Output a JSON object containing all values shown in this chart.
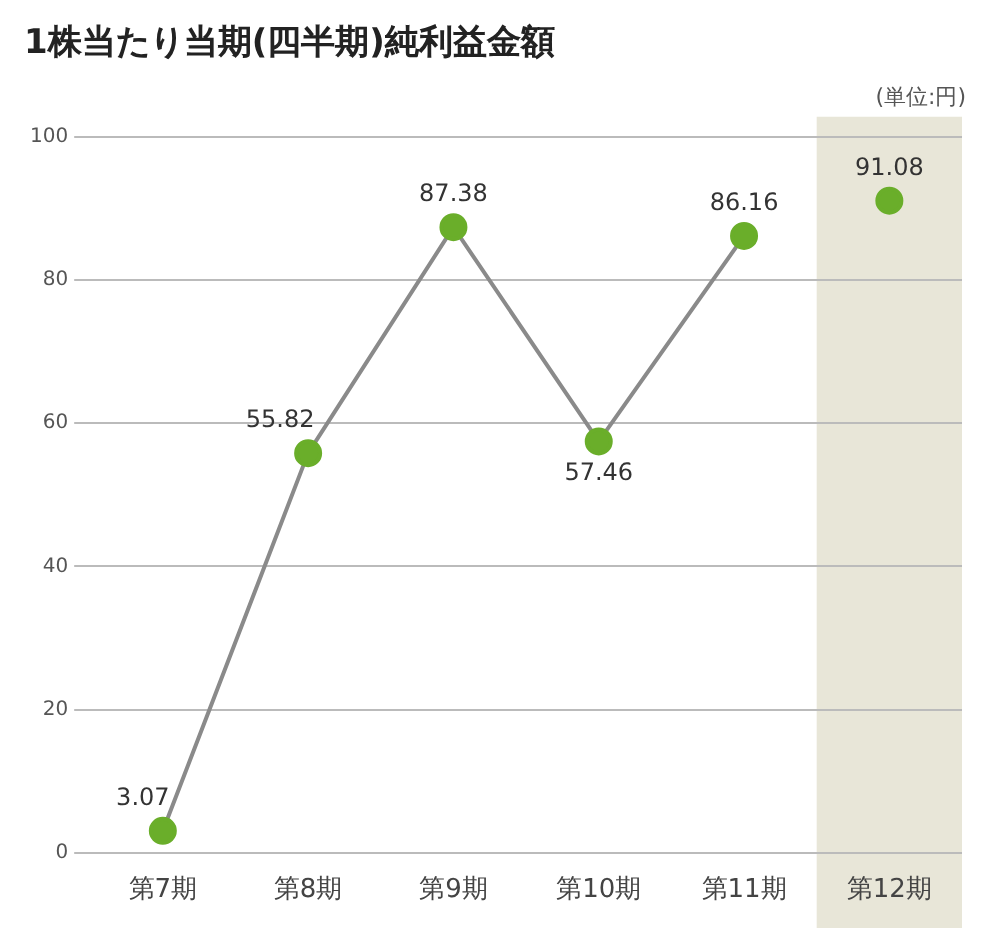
{
  "chart_data": {
    "type": "line",
    "title": "1株当たり当期(四半期)純利益金額",
    "annotations": [
      "(単位:円)"
    ],
    "categories": [
      "第7期",
      "第8期",
      "第9期",
      "第10期",
      "第11期",
      "第12期"
    ],
    "series": [
      {
        "color": "#6aae2a",
        "values": [
          3.07,
          55.82,
          87.38,
          57.46,
          86.16,
          null
        ]
      },
      {
        "type": "scatter",
        "color": "#6aae2a",
        "values": [
          null,
          null,
          null,
          null,
          null,
          91.08
        ]
      }
    ],
    "bands": [
      {
        "axis": "x",
        "from": "第12期",
        "to": "第12期",
        "color": "#e8e6d8"
      }
    ],
    "ylim": [
      0,
      100
    ],
    "yticks": [
      0,
      20,
      40,
      60,
      80,
      100
    ],
    "grid": "y",
    "marker": "circle",
    "data_labels": true,
    "legend": false
  }
}
